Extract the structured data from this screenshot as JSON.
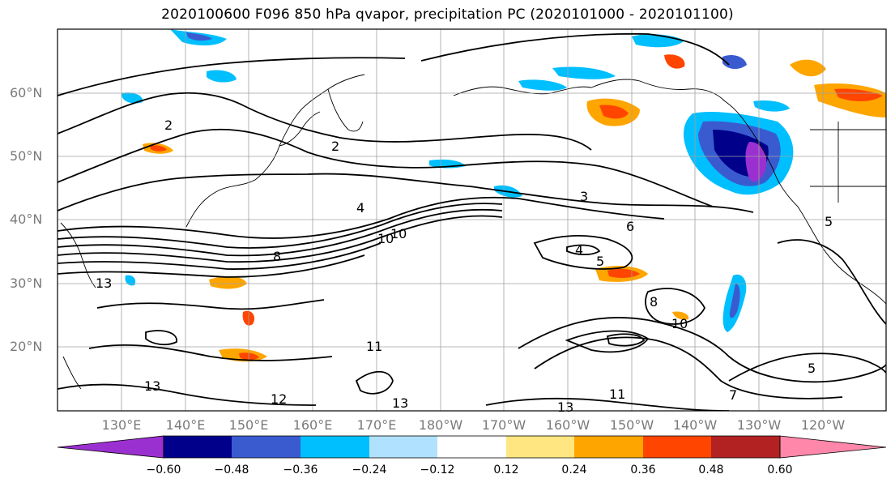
{
  "title": "2020100600 F096 850 hPa qvapor, precipitation PC (2020101000 - 2020101100)",
  "lat_labels": [
    "60°N",
    "50°N",
    "40°N",
    "30°N",
    "20°N"
  ],
  "lon_labels": [
    "130°E",
    "140°E",
    "150°E",
    "160°E",
    "170°E",
    "180°W",
    "170°W",
    "160°W",
    "150°W",
    "140°W",
    "130°W",
    "120°W"
  ],
  "colorbar": {
    "ticks": [
      "−0.60",
      "−0.48",
      "−0.36",
      "−0.24",
      "−0.12",
      "0.12",
      "0.24",
      "0.36",
      "0.48",
      "0.60"
    ],
    "colors": [
      "#9b30d0",
      "#00008b",
      "#3a5bd0",
      "#00bfff",
      "#b0e2ff",
      "#ffffff",
      "#ffe680",
      "#ffa500",
      "#ff4500",
      "#b22222",
      "#ff88aa"
    ]
  },
  "contour_labels": [
    "2",
    "2",
    "3",
    "4",
    "5",
    "4",
    "5",
    "6",
    "8",
    "10",
    "10",
    "11",
    "12",
    "13",
    "13",
    "13",
    "13",
    "11",
    "10",
    "8",
    "5",
    "7"
  ]
}
